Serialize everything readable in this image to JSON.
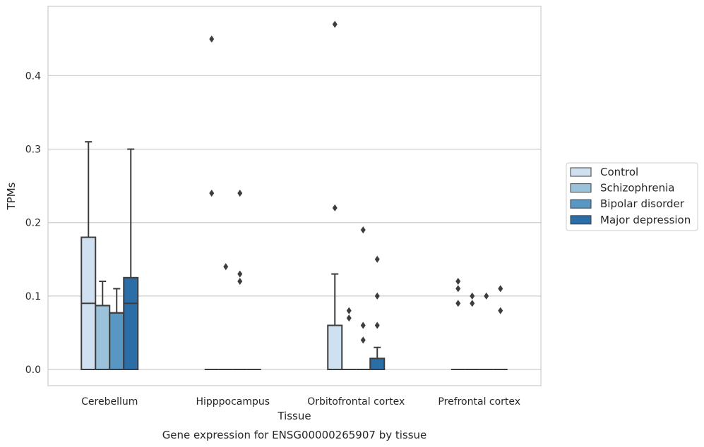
{
  "chart_data": {
    "type": "box",
    "title": "",
    "caption": "Gene expression for ENSG00000265907 by tissue",
    "xlabel": "Tissue",
    "ylabel": "TPMs",
    "ylim": [
      -0.023,
      0.495
    ],
    "yticks": [
      0.0,
      0.1,
      0.2,
      0.3,
      0.4
    ],
    "ytick_labels": [
      "0.0",
      "0.1",
      "0.2",
      "0.3",
      "0.4"
    ],
    "categories": [
      "Cerebellum",
      "Hipppocampus",
      "Orbitofrontal cortex",
      "Prefrontal cortex"
    ],
    "grid": "horizontal",
    "legend_position": "right",
    "series": [
      {
        "name": "Control",
        "color": "#cfe1f0",
        "boxes": [
          {
            "q1": 0.0,
            "median": 0.09,
            "q3": 0.18,
            "whisker_low": 0.0,
            "whisker_high": 0.31,
            "outliers": []
          },
          {
            "q1": 0.0,
            "median": 0.0,
            "q3": 0.0,
            "whisker_low": 0.0,
            "whisker_high": 0.0,
            "outliers": [
              0.24,
              0.45
            ]
          },
          {
            "q1": 0.0,
            "median": 0.0,
            "q3": 0.06,
            "whisker_low": 0.0,
            "whisker_high": 0.13,
            "outliers": [
              0.22,
              0.47
            ]
          },
          {
            "q1": 0.0,
            "median": 0.0,
            "q3": 0.0,
            "whisker_low": 0.0,
            "whisker_high": 0.0,
            "outliers": [
              0.09,
              0.11,
              0.12
            ]
          }
        ]
      },
      {
        "name": "Schizophrenia",
        "color": "#9ac2db",
        "boxes": [
          {
            "q1": 0.0,
            "median": 0.087,
            "q3": 0.087,
            "whisker_low": 0.0,
            "whisker_high": 0.12,
            "outliers": []
          },
          {
            "q1": 0.0,
            "median": 0.0,
            "q3": 0.0,
            "whisker_low": 0.0,
            "whisker_high": 0.0,
            "outliers": [
              0.14
            ]
          },
          {
            "q1": 0.0,
            "median": 0.0,
            "q3": 0.0,
            "whisker_low": 0.0,
            "whisker_high": 0.0,
            "outliers": [
              0.07,
              0.08
            ]
          },
          {
            "q1": 0.0,
            "median": 0.0,
            "q3": 0.0,
            "whisker_low": 0.0,
            "whisker_high": 0.0,
            "outliers": [
              0.09,
              0.1
            ]
          }
        ]
      },
      {
        "name": "Bipolar disorder",
        "color": "#5896c3",
        "boxes": [
          {
            "q1": 0.0,
            "median": 0.077,
            "q3": 0.077,
            "whisker_low": 0.0,
            "whisker_high": 0.11,
            "outliers": []
          },
          {
            "q1": 0.0,
            "median": 0.0,
            "q3": 0.0,
            "whisker_low": 0.0,
            "whisker_high": 0.0,
            "outliers": [
              0.12,
              0.13,
              0.24
            ]
          },
          {
            "q1": 0.0,
            "median": 0.0,
            "q3": 0.0,
            "whisker_low": 0.0,
            "whisker_high": 0.0,
            "outliers": [
              0.04,
              0.06,
              0.19
            ]
          },
          {
            "q1": 0.0,
            "median": 0.0,
            "q3": 0.0,
            "whisker_low": 0.0,
            "whisker_high": 0.0,
            "outliers": [
              0.1
            ]
          }
        ]
      },
      {
        "name": "Major depression",
        "color": "#2b6da6",
        "boxes": [
          {
            "q1": 0.0,
            "median": 0.09,
            "q3": 0.125,
            "whisker_low": 0.0,
            "whisker_high": 0.3,
            "outliers": []
          },
          {
            "q1": 0.0,
            "median": 0.0,
            "q3": 0.0,
            "whisker_low": 0.0,
            "whisker_high": 0.0,
            "outliers": []
          },
          {
            "q1": 0.0,
            "median": 0.0,
            "q3": 0.015,
            "whisker_low": 0.0,
            "whisker_high": 0.03,
            "outliers": [
              0.06,
              0.1,
              0.15
            ]
          },
          {
            "q1": 0.0,
            "median": 0.0,
            "q3": 0.0,
            "whisker_low": 0.0,
            "whisker_high": 0.0,
            "outliers": [
              0.08,
              0.11
            ]
          }
        ]
      }
    ]
  }
}
